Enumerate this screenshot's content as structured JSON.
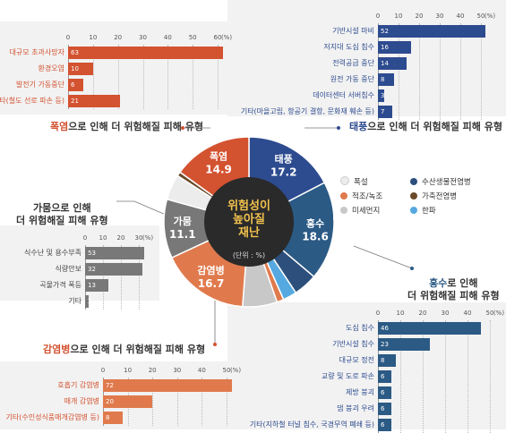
{
  "colors": {
    "heatwave": "#d35230",
    "typhoon": "#2d4b8f",
    "flood": "#2b5a85",
    "drought": "#787878",
    "epidemic": "#e07a4d",
    "center": "#2a2a2a",
    "heavy_snow": "#ececec",
    "red_tide": "#e07a4d",
    "fine_dust": "#c8c8c8",
    "aquatic": "#2c4f7c",
    "livestock": "#6b4a2a",
    "cold_wave": "#55a9e0"
  },
  "donut": {
    "center_title": "위험성이\n높아질\n재난",
    "center_unit": "(단위 : %)",
    "slices": [
      {
        "key": "typhoon",
        "name": "태풍",
        "value": 17.2
      },
      {
        "key": "flood",
        "name": "홍수",
        "value": 18.6
      },
      {
        "key": "aquatic",
        "name": "",
        "value": 4.5
      },
      {
        "key": "cold_wave",
        "name": "",
        "value": 2.6
      },
      {
        "key": "red_tide",
        "name": "",
        "value": 1.3
      },
      {
        "key": "fine_dust",
        "name": "",
        "value": 6.5
      },
      {
        "key": "epidemic",
        "name": "감염병",
        "value": 16.7
      },
      {
        "key": "drought",
        "name": "가뭄",
        "value": 11.1
      },
      {
        "key": "heavy_snow",
        "name": "",
        "value": 4.8
      },
      {
        "key": "livestock",
        "name": "",
        "value": 0.8
      },
      {
        "key": "heatwave",
        "name": "폭염",
        "value": 14.9
      }
    ]
  },
  "chart_data": [
    {
      "type": "bar",
      "id": "heatwave",
      "title_highlight": "폭염",
      "title_rest": "으로 인해 더 위험해질 피해 유형",
      "unit": "(%)",
      "ticks": [
        0,
        10,
        20,
        30,
        40,
        50,
        60
      ],
      "xmax": 60,
      "categories": [
        "대규모 초과사망자",
        "환경오염",
        "발전기 가동중단",
        "기타(철도 선로 파손 등)"
      ],
      "values": [
        63,
        10,
        6,
        21
      ]
    },
    {
      "type": "bar",
      "id": "typhoon",
      "title_highlight": "태풍",
      "title_rest": "으로 인해 더 위험해질 피해 유형",
      "unit": "(%)",
      "ticks": [
        0,
        10,
        20,
        30,
        40,
        50
      ],
      "xmax": 50,
      "categories": [
        "기반시설 마비",
        "저지대 도심 침수",
        "전력공급 중단",
        "원전 가동 중단",
        "데이터센터 서버침수",
        "기타(마을고립, 항공기 결항, 문화재 훼손 등)"
      ],
      "values": [
        52,
        16,
        14,
        8,
        3,
        7
      ]
    },
    {
      "type": "bar",
      "id": "drought",
      "title_highlight": "가뭄",
      "title_rest": "으로 인해\n더 위험해질 피해 유형",
      "unit": "(%)",
      "ticks": [
        0,
        10,
        20,
        30
      ],
      "xmax": 30,
      "categories": [
        "식수난 및 용수부족",
        "식량안보",
        "곡물가격 폭등",
        "기타"
      ],
      "values": [
        53,
        32,
        13,
        2
      ]
    },
    {
      "type": "bar",
      "id": "flood",
      "title_highlight": "홍수",
      "title_rest": "로 인해\n더 위험해질 피해 유형",
      "unit": "(%)",
      "ticks": [
        0,
        10,
        20,
        30,
        40,
        50
      ],
      "xmax": 50,
      "categories": [
        "도심 침수",
        "기반시설 침수",
        "대규모 정전",
        "교량 및 도로 파손",
        "제방 붕괴",
        "댐 붕괴 우려",
        "기타(지하철 터널 침수, 국경무역 폐쇄 등)"
      ],
      "values": [
        46,
        23,
        8,
        6,
        6,
        6,
        6
      ]
    },
    {
      "type": "bar",
      "id": "epidemic",
      "title_highlight": "감염병",
      "title_rest": "으로 인해 더 위험해질 피해 유형",
      "unit": "(%)",
      "ticks": [
        0,
        10,
        20,
        30,
        40,
        50
      ],
      "xmax": 50,
      "categories": [
        "호흡기 감염병",
        "매개 감염병",
        "기타(수인성식품매개감염병 등)"
      ],
      "values": [
        72,
        20,
        8
      ]
    }
  ],
  "legend": [
    {
      "key": "heavy_snow",
      "label": "폭설"
    },
    {
      "key": "aquatic",
      "label": "수산생물전염병"
    },
    {
      "key": "red_tide",
      "label": "적조/녹조"
    },
    {
      "key": "livestock",
      "label": "가축전염병"
    },
    {
      "key": "fine_dust",
      "label": "미세먼지"
    },
    {
      "key": "cold_wave",
      "label": "한파"
    }
  ]
}
